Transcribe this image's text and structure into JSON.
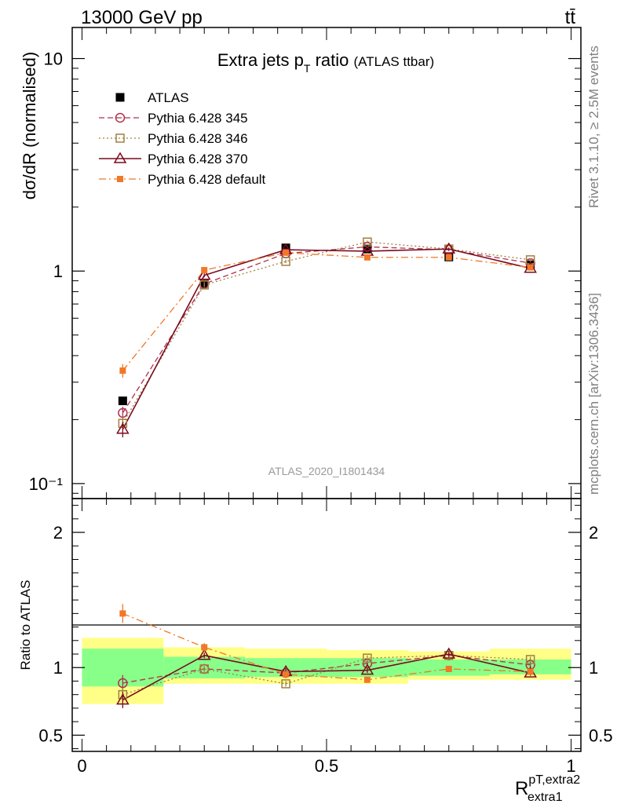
{
  "header": {
    "energy_label": "13000 GeV pp",
    "process_label": "tt̄"
  },
  "side_text": {
    "rivet": "Rivet 3.1.10, ≥ 2.5M events",
    "mcplots": "mcplots.cern.ch [arXiv:1306.3436]"
  },
  "watermark": "ATLAS_2020_I1801434",
  "chart_data": [
    {
      "type": "scatter",
      "title_main": "Extra jets p",
      "title_sub": "T",
      "title_rest": " ratio",
      "title_paren": "(ATLAS ttbar)",
      "ylabel": "dσ/dR (normalised)",
      "yscale": "log",
      "ylim": [
        0.085,
        14.0
      ],
      "xlim": [
        -0.02,
        1.02
      ],
      "y_ticks": [
        "10⁻¹",
        "1",
        "10"
      ],
      "x": [
        0.0833,
        0.25,
        0.4167,
        0.5833,
        0.75,
        0.9167
      ],
      "series": [
        {
          "name": "ATLAS",
          "color": "#000000",
          "marker": "filled-square",
          "line": "none",
          "values": [
            0.245,
            0.875,
            1.285,
            1.27,
            1.165,
            1.07
          ],
          "yerr": [
            0.01,
            0.03,
            0.03,
            0.03,
            0.03,
            0.03
          ]
        },
        {
          "name": "Pythia 6.428 345",
          "color": "#b03050",
          "marker": "open-circle",
          "line": "dashed",
          "values": [
            0.215,
            0.87,
            1.21,
            1.3,
            1.26,
            1.09
          ],
          "yerr": [
            0.015,
            0.02,
            0.02,
            0.02,
            0.02,
            0.02
          ]
        },
        {
          "name": "Pythia 6.428 346",
          "color": "#a08040",
          "marker": "open-square",
          "line": "dotted",
          "values": [
            0.192,
            0.86,
            1.11,
            1.37,
            1.27,
            1.13
          ],
          "yerr": [
            0.014,
            0.02,
            0.02,
            0.02,
            0.02,
            0.02
          ]
        },
        {
          "name": "Pythia 6.428 370",
          "color": "#7a0a1e",
          "marker": "open-triangle",
          "line": "solid",
          "values": [
            0.18,
            0.955,
            1.26,
            1.24,
            1.27,
            1.03
          ],
          "yerr": [
            0.015,
            0.02,
            0.02,
            0.02,
            0.02,
            0.02
          ]
        },
        {
          "name": "Pythia 6.428 default",
          "color": "#f07828",
          "marker": "filled-square-small",
          "line": "dashdot",
          "values": [
            0.34,
            1.01,
            1.22,
            1.16,
            1.16,
            1.04
          ],
          "yerr": [
            0.025,
            0.02,
            0.02,
            0.02,
            0.02,
            0.02
          ]
        }
      ]
    },
    {
      "type": "scatter",
      "ylabel": "Ratio to ATLAS",
      "yscale": "linear",
      "ylim": [
        0.38,
        2.25
      ],
      "xlim": [
        -0.02,
        1.02
      ],
      "y_ticks": [
        "0.5",
        "1",
        "2"
      ],
      "x_ticks": [
        "0",
        "0.5",
        "1"
      ],
      "xlabel_main": "R",
      "xlabel_sup": "pT,extra2",
      "xlabel_sub": "extra1",
      "bands": {
        "edges": [
          0.0,
          0.1667,
          0.3333,
          0.5,
          0.6667,
          0.8333,
          1.0
        ],
        "green_lo": [
          0.86,
          0.92,
          0.93,
          0.93,
          0.94,
          0.95
        ],
        "green_hi": [
          1.14,
          1.08,
          1.07,
          1.07,
          1.06,
          1.06
        ],
        "yellow_lo": [
          0.73,
          0.88,
          0.88,
          0.88,
          0.91,
          0.91
        ],
        "yellow_hi": [
          1.22,
          1.15,
          1.14,
          1.13,
          1.12,
          1.14
        ]
      },
      "x": [
        0.0833,
        0.25,
        0.4167,
        0.5833,
        0.75,
        0.9167
      ],
      "series": [
        {
          "name": "Pythia 6.428 345",
          "values": [
            0.885,
            0.99,
            0.96,
            1.03,
            1.09,
            1.02
          ],
          "yerr": [
            0.06,
            0.02,
            0.02,
            0.02,
            0.02,
            0.02
          ]
        },
        {
          "name": "Pythia 6.428 346",
          "values": [
            0.8,
            0.99,
            0.88,
            1.07,
            1.09,
            1.06
          ],
          "yerr": [
            0.05,
            0.02,
            0.02,
            0.02,
            0.02,
            0.02
          ]
        },
        {
          "name": "Pythia 6.428 370",
          "values": [
            0.76,
            1.09,
            0.97,
            0.98,
            1.1,
            0.96
          ],
          "yerr": [
            0.06,
            0.02,
            0.02,
            0.02,
            0.02,
            0.02
          ]
        },
        {
          "name": "Pythia 6.428 default",
          "values": [
            1.4,
            1.15,
            0.95,
            0.91,
            0.99,
            0.97
          ],
          "yerr": [
            0.07,
            0.03,
            0.02,
            0.02,
            0.02,
            0.02
          ]
        }
      ]
    }
  ]
}
